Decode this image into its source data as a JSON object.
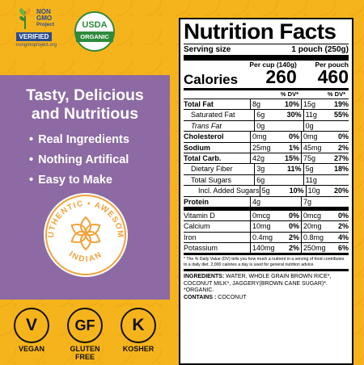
{
  "logos": {
    "ngmo": {
      "lines": [
        "NON",
        "GMO",
        "Project"
      ],
      "verified": "VERIFIED",
      "url": "nongmoproject.org"
    },
    "usda": {
      "top": "USDA",
      "bottom": "ORGANIC"
    }
  },
  "panel": {
    "tagline_line1": "Tasty, Delicious",
    "tagline_line2": "and Nutritious",
    "bullets": [
      "Real Ingredients",
      "Nothing Artifical",
      "Easy to Make"
    ],
    "badge": {
      "arc_top": "AUTHENTIC • AWESOME",
      "arc_bottom": "INDIAN"
    },
    "colors": {
      "panel": "#8d6aa3",
      "badge_orange": "#f2a23a"
    }
  },
  "diet": [
    {
      "symbol": "V",
      "label": "VEGAN"
    },
    {
      "symbol": "GF",
      "label": "GLUTEN FREE"
    },
    {
      "symbol": "K",
      "label": "KOSHER"
    }
  ],
  "nutrition": {
    "title": "Nutrition Facts",
    "serving_label": "Serving size",
    "serving_value": "1 pouch (250g)",
    "per_cup_label": "Per cup (140g)",
    "per_pouch_label": "Per pouch",
    "calories_label": "Calories",
    "calories_cup": "260",
    "calories_pouch": "460",
    "dv_label": "% DV*",
    "rows": [
      {
        "name": "Total Fat",
        "style": "b",
        "a": "8g",
        "b": "10%",
        "c": "15g",
        "d": "19%"
      },
      {
        "name": "Saturated Fat",
        "style": "ind1",
        "a": "6g",
        "b": "30%",
        "c": "11g",
        "d": "55%"
      },
      {
        "name": "Trans Fat",
        "style": "ind1 ital",
        "a": "0g",
        "b": "",
        "c": "0g",
        "d": ""
      },
      {
        "name": "Cholesterol",
        "style": "b",
        "a": "0mg",
        "b": "0%",
        "c": "0mg",
        "d": "0%"
      },
      {
        "name": "Sodium",
        "style": "b",
        "a": "25mg",
        "b": "1%",
        "c": "45mg",
        "d": "2%"
      },
      {
        "name": "Total Carb.",
        "style": "b",
        "a": "42g",
        "b": "15%",
        "c": "75g",
        "d": "27%"
      },
      {
        "name": "Dietary Fiber",
        "style": "ind1",
        "a": "3g",
        "b": "11%",
        "c": "5g",
        "d": "18%"
      },
      {
        "name": "Total Sugars",
        "style": "ind1",
        "a": "6g",
        "b": "",
        "c": "11g",
        "d": ""
      },
      {
        "name": "Incl. Added Sugars",
        "style": "ind2",
        "a": "5g",
        "b": "10%",
        "c": "10g",
        "d": "20%"
      },
      {
        "name": "Protein",
        "style": "b",
        "a": "4g",
        "b": "",
        "c": "7g",
        "d": ""
      }
    ],
    "micros": [
      {
        "name": "Vitamin D",
        "a": "0mcg",
        "b": "0%",
        "c": "0mcg",
        "d": "0%"
      },
      {
        "name": "Calcium",
        "a": "10mg",
        "b": "0%",
        "c": "20mg",
        "d": "2%"
      },
      {
        "name": "Iron",
        "a": "0.4mg",
        "b": "2%",
        "c": "0.8mg",
        "d": "4%"
      },
      {
        "name": "Potassium",
        "a": "140mg",
        "b": "2%",
        "c": "250mg",
        "d": "6%"
      }
    ],
    "footnote": "* The % Daily Value (DV) tells you how much a nutrient in a serving of food contributes to a daily diet. 2,000 calories a day is used for general nutrition advice.",
    "ingredients_label": "INGREDIENTS:",
    "ingredients_text": "WATER, WHOLE GRAIN BROWN RICE*, COCONUT MILK*, JAGGERY(BROWN CANE SUGAR)*.",
    "organic_note": "*ORGANIC.",
    "contains_label": "CONTAINS :",
    "contains_text": "COCONUT"
  }
}
